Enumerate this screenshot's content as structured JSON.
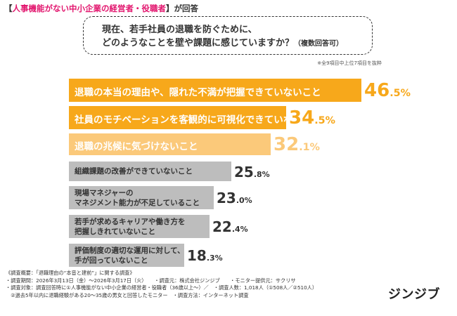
{
  "header": {
    "prefix": "【",
    "highlight": "人事機能がない中小企業の経営者・役職者",
    "suffix": "】が回答"
  },
  "question": {
    "line1": "現在、若手社員の退職を防ぐために、",
    "line2": "どのようなことを壁や課題に感じていますか？",
    "note": "（複数回答可）"
  },
  "footnote": "※全9項目中上位7項目を抜粋",
  "colors": {
    "top": "#f7a81b",
    "third": "#fbc97a",
    "rest": "#bdbdbd",
    "accent": "#e2166e"
  },
  "chart_data": {
    "type": "bar",
    "orientation": "horizontal",
    "xlim": [
      0,
      50
    ],
    "categories": [
      "退職の本当の理由や、隠れた不満が把握できていないこと",
      "社員のモチベーションを客観的に可視化できていないこと",
      "退職の兆候に気づけないこと",
      "組織課題の改善ができていないこと",
      "現場マネジャーのマネジメント能力が不足していること",
      "若手が求めるキャリアや働き方を把握しきれていないこと",
      "評価制度の適切な運用に対して、手が回っていないこと"
    ],
    "values": [
      46.5,
      34.5,
      32.1,
      25.8,
      23.0,
      22.4,
      18.3
    ],
    "bars": [
      {
        "label_lines": [
          "退職の本当の理由や、隠れた不満が把握できていないこと"
        ],
        "int": "46",
        "dec": ".5%"
      },
      {
        "label_lines": [
          "社員のモチベーションを客観的に可視化できていないこと"
        ],
        "int": "34",
        "dec": ".5%"
      },
      {
        "label_lines": [
          "退職の兆候に気づけないこと"
        ],
        "int": "32",
        "dec": ".1%"
      },
      {
        "label_lines": [
          "組織課題の改善ができていないこと"
        ],
        "int": "25",
        "dec": ".8%"
      },
      {
        "label_lines": [
          "現場マネジャーの",
          "マネジメント能力が不足していること"
        ],
        "int": "23",
        "dec": ".0%"
      },
      {
        "label_lines": [
          "若手が求めるキャリアや働き方を",
          "把握しきれていないこと"
        ],
        "int": "22",
        "dec": ".4%"
      },
      {
        "label_lines": [
          "評価制度の適切な運用に対して、",
          "手が回っていないこと"
        ],
        "int": "18",
        "dec": ".3%"
      }
    ]
  },
  "summary": {
    "lines": [
      "《調査概要：「退職理由の“本音と建前”」に関する調査》",
      "・調査期間：2026年3月13日（金）〜2026年3月17日（火）　　・調査元：株式会社ジンジブ　　・モニター提供元：サクリサ",
      "・調査対象：調査回答時に①人事機能がない中小企業の経営者・役職者（36歳以上〜）／　・調査人数：1,018人（①508人／②510人）",
      "　②過去5年以内に退職経験がある20〜35歳の男女と回答したモニター　・調査方法：インターネット調査"
    ]
  },
  "logo": "ジンジブ"
}
